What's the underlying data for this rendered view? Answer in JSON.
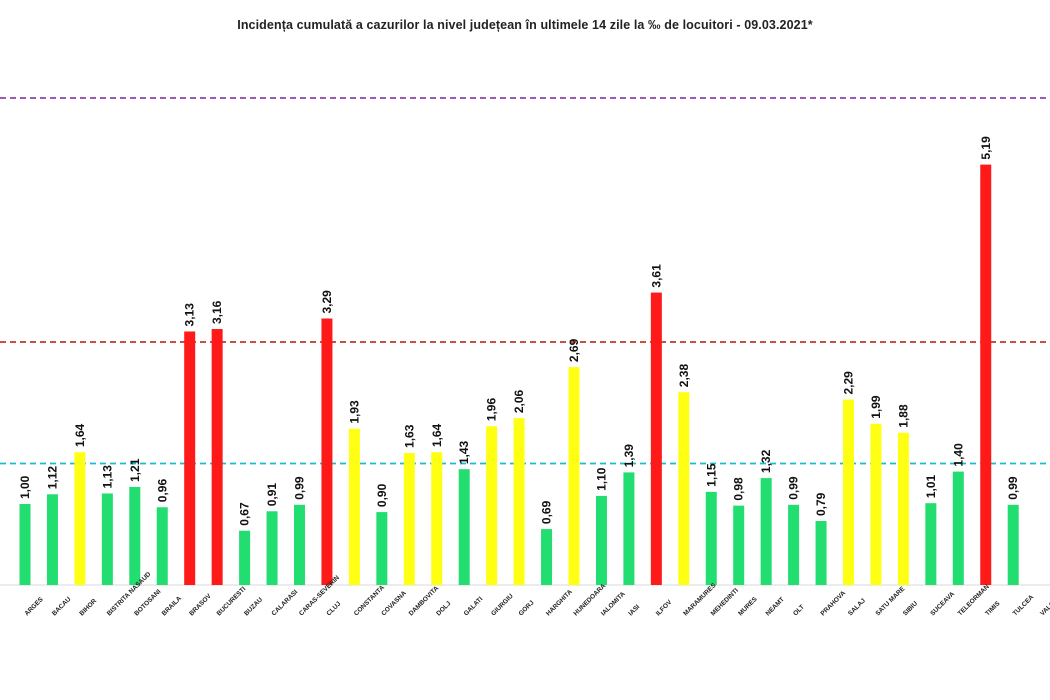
{
  "chart_data": {
    "type": "bar",
    "title": "Incidența cumulată a cazurilor la nivel județean în ultimele 14 zile la ‰ de locuitori - 09.03.2021*",
    "xlabel": "",
    "ylabel": "",
    "ylim": [
      0,
      6
    ],
    "grid": false,
    "legend": "none",
    "categories": [
      "ARGES",
      "BACAU",
      "BIHOR",
      "BISTRITA NASAUD",
      "BOTOSANI",
      "BRAILA",
      "BRASOV",
      "BUCURESTI",
      "BUZAU",
      "CALARASI",
      "CARAS-SEVERIN",
      "CLUJ",
      "CONSTANTA",
      "COVASNA",
      "DAMBOVITA",
      "DOLJ",
      "GALATI",
      "GIURGIU",
      "GORJ",
      "HARGHITA",
      "HUNEDOARA",
      "IALOMITA",
      "IASI",
      "ILFOV",
      "MARAMURES",
      "MEHEDINTI",
      "MURES",
      "NEAMT",
      "OLT",
      "PRAHOVA",
      "SALAJ",
      "SATU MARE",
      "SIBIU",
      "SUCEAVA",
      "TELEORMAN",
      "TIMIS",
      "TULCEA",
      "VALCEA"
    ],
    "values": [
      1.0,
      1.12,
      1.64,
      1.13,
      1.21,
      0.96,
      3.13,
      3.16,
      0.67,
      0.91,
      0.99,
      3.29,
      1.93,
      0.9,
      1.63,
      1.64,
      1.43,
      1.96,
      2.06,
      0.69,
      2.69,
      1.1,
      1.39,
      3.61,
      2.38,
      1.15,
      0.98,
      1.32,
      0.99,
      0.79,
      2.29,
      1.99,
      1.88,
      1.01,
      1.4,
      5.19,
      0.99,
      null
    ],
    "value_labels": [
      "1,00",
      "1,12",
      "1,64",
      "1,13",
      "1,21",
      "0,96",
      "3,13",
      "3,16",
      "0,67",
      "0,91",
      "0,99",
      "3,29",
      "1,93",
      "0,90",
      "1,63",
      "1,64",
      "1,43",
      "1,96",
      "2,06",
      "0,69",
      "2,69",
      "1,10",
      "1,39",
      "3,61",
      "2,38",
      "1,15",
      "0,98",
      "1,32",
      "0,99",
      "0,79",
      "2,29",
      "1,99",
      "1,88",
      "1,01",
      "1,40",
      "5,19",
      "0,99",
      ""
    ],
    "thresholds": [
      {
        "value": 1.5,
        "color": "#17becf",
        "style": "dashed"
      },
      {
        "value": 3.0,
        "color": "#c0392b",
        "style": "dashed"
      },
      {
        "value": 6.0,
        "color": "#8e44ad",
        "style": "dashed"
      }
    ],
    "color_rules": [
      {
        "max": 1.5,
        "color": "#22dd6f"
      },
      {
        "max": 3.0,
        "color": "#ffff14"
      },
      {
        "max": null,
        "color": "#ff1a1a"
      }
    ]
  }
}
